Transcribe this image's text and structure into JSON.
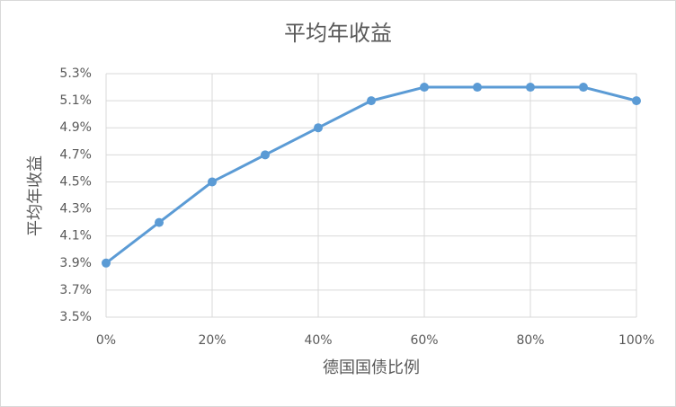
{
  "chart_data": {
    "type": "line",
    "title": "平均年收益",
    "x_label": "德国国债比例",
    "y_label": "平均年收益",
    "x": [
      0,
      10,
      20,
      30,
      40,
      50,
      60,
      70,
      80,
      90,
      100
    ],
    "series": [
      {
        "name": "平均年收益",
        "color": "#5b9bd5",
        "values": [
          3.9,
          4.2,
          4.5,
          4.7,
          4.9,
          5.1,
          5.2,
          5.2,
          5.2,
          5.2,
          5.1
        ]
      }
    ],
    "xlim": [
      0,
      100
    ],
    "xticks": [
      {
        "value": 0,
        "label": "0%"
      },
      {
        "value": 20,
        "label": "20%"
      },
      {
        "value": 40,
        "label": "40%"
      },
      {
        "value": 60,
        "label": "60%"
      },
      {
        "value": 80,
        "label": "80%"
      },
      {
        "value": 100,
        "label": "100%"
      }
    ],
    "ylim": [
      3.5,
      5.3
    ],
    "yticks": [
      {
        "value": 3.5,
        "label": "3.5%"
      },
      {
        "value": 3.7,
        "label": "3.7%"
      },
      {
        "value": 3.9,
        "label": "3.9%"
      },
      {
        "value": 4.1,
        "label": "4.1%"
      },
      {
        "value": 4.3,
        "label": "4.3%"
      },
      {
        "value": 4.5,
        "label": "4.5%"
      },
      {
        "value": 4.7,
        "label": "4.7%"
      },
      {
        "value": 4.9,
        "label": "4.9%"
      },
      {
        "value": 5.1,
        "label": "5.1%"
      },
      {
        "value": 5.3,
        "label": "5.3%"
      }
    ],
    "grid": true
  }
}
